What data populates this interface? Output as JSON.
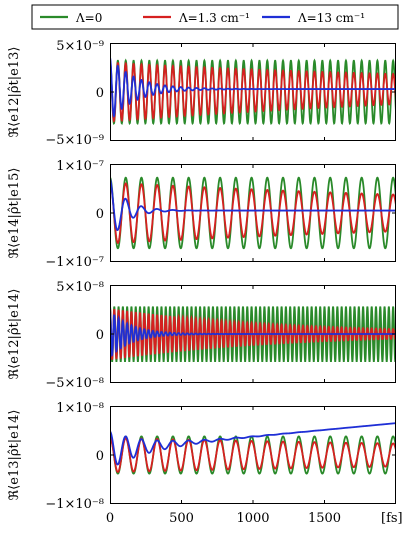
{
  "legend": {
    "entries": [
      {
        "label": "Λ=0",
        "color": "#2a8a2a"
      },
      {
        "label": "Λ=1.3 cm⁻¹",
        "color": "#d62020"
      },
      {
        "label": "Λ=13 cm⁻¹",
        "color": "#1f2fd6"
      }
    ]
  },
  "x_unit_label": "[fs]",
  "chart_data": [
    {
      "type": "line",
      "ylabel": "ℜ⟨e12|ρ̂t|e13⟩",
      "xlim": [
        0,
        2000
      ],
      "ylim": [
        -5e-09,
        5e-09
      ],
      "ytick_labels": {
        "top": "5×10⁻⁹",
        "mid": "0",
        "bottom": "−5×10⁻⁹"
      },
      "x_ticks": [
        0,
        500,
        1000,
        1500
      ],
      "series": [
        {
          "name": "Λ=0",
          "color": "#2a8a2a",
          "amplitude": 3.2e-09,
          "period_fs": 55,
          "decay_fs": null,
          "offset_start": 0,
          "offset_end": 0
        },
        {
          "name": "Λ=1.3 cm⁻¹",
          "color": "#d62020",
          "amplitude": 3e-09,
          "period_fs": 55,
          "decay_fs": 3000,
          "offset_start": 0,
          "offset_end": 3e-10
        },
        {
          "name": "Λ=13 cm⁻¹",
          "color": "#1f2fd6",
          "amplitude": 3.2e-09,
          "period_fs": 55,
          "decay_fs": 180,
          "offset_start": 3e-10,
          "offset_end": 3e-10
        }
      ]
    },
    {
      "type": "line",
      "ylabel": "ℜ⟨e14|ρ̂t|e15⟩",
      "xlim": [
        0,
        2000
      ],
      "ylim": [
        -1e-07,
        1e-07
      ],
      "ytick_labels": {
        "top": "1×10⁻⁷",
        "mid": "0",
        "bottom": "−1×10⁻⁷"
      },
      "x_ticks": [
        0,
        500,
        1000,
        1500
      ],
      "series": [
        {
          "name": "Λ=0",
          "color": "#2a8a2a",
          "amplitude": 7.2e-08,
          "period_fs": 110,
          "decay_fs": null,
          "offset_start": 0,
          "offset_end": 0
        },
        {
          "name": "Λ=1.3 cm⁻¹",
          "color": "#d62020",
          "amplitude": 6.2e-08,
          "period_fs": 110,
          "decay_fs": 4000,
          "offset_start": 0,
          "offset_end": 0
        },
        {
          "name": "Λ=13 cm⁻¹",
          "color": "#1f2fd6",
          "amplitude": 6.5e-08,
          "period_fs": 110,
          "decay_fs": 110,
          "offset_start": 5e-09,
          "offset_end": 5e-09
        }
      ]
    },
    {
      "type": "line",
      "ylabel": "ℜ⟨e12|ρ̂t|e14⟩",
      "xlim": [
        0,
        2000
      ],
      "ylim": [
        -5e-08,
        5e-08
      ],
      "ytick_labels": {
        "top": "5×10⁻⁸",
        "mid": "0",
        "bottom": "−5×10⁻⁸"
      },
      "x_ticks": [
        0,
        500,
        1000,
        1500
      ],
      "series": [
        {
          "name": "Λ=0",
          "color": "#2a8a2a",
          "amplitude": 2.8e-08,
          "period_fs": 30,
          "decay_fs": null,
          "offset_start": 0,
          "offset_end": 0
        },
        {
          "name": "Λ=1.3 cm⁻¹",
          "color": "#d62020",
          "amplitude": 2.6e-08,
          "period_fs": 30,
          "decay_fs": 1200,
          "offset_start": 0,
          "offset_end": 0
        },
        {
          "name": "Λ=13 cm⁻¹",
          "color": "#1f2fd6",
          "amplitude": 2.4e-08,
          "period_fs": 30,
          "decay_fs": 150,
          "offset_start": 0,
          "offset_end": 0
        }
      ]
    },
    {
      "type": "line",
      "ylabel": "ℜ⟨e13|ρ̂t|e14⟩",
      "xlim": [
        0,
        2000
      ],
      "ylim": [
        -1e-08,
        1e-08
      ],
      "ytick_labels": {
        "top": "1×10⁻⁸",
        "mid": "0",
        "bottom": "−1×10⁻⁸"
      },
      "x_ticks": [
        0,
        500,
        1000,
        1500
      ],
      "x_tick_labels": [
        "0",
        "500",
        "1000",
        "1500"
      ],
      "series": [
        {
          "name": "Λ=0",
          "color": "#2a8a2a",
          "amplitude": 3.8e-09,
          "period_fs": 110,
          "decay_fs": null,
          "offset_start": 0,
          "offset_end": 0
        },
        {
          "name": "Λ=1.3 cm⁻¹",
          "color": "#d62020",
          "amplitude": 3.5e-09,
          "period_fs": 110,
          "decay_fs": 5000,
          "offset_start": 0,
          "offset_end": 0
        },
        {
          "name": "Λ=13 cm⁻¹",
          "color": "#1f2fd6",
          "amplitude": 3.8e-09,
          "period_fs": 110,
          "decay_fs": 260,
          "offset_start": 1e-09,
          "offset_end": 6.5e-09
        }
      ]
    }
  ]
}
